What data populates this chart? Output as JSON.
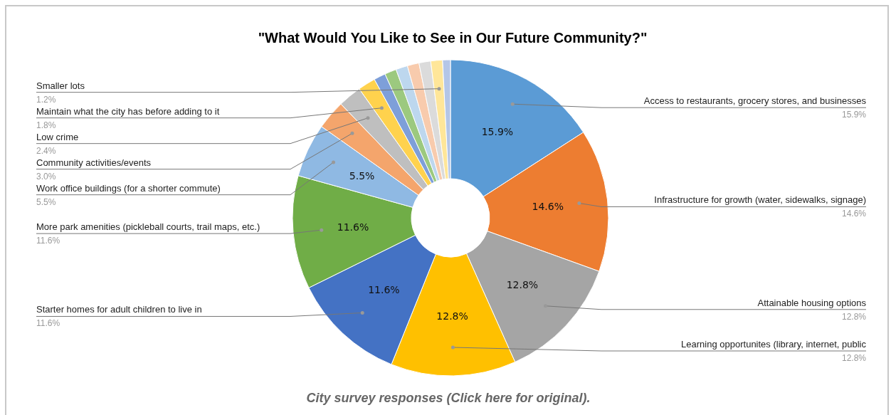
{
  "chart_data": {
    "type": "donut",
    "title": "\"What Would You Like to See in Our Future Community?\"",
    "categories": [
      "Access to restaurants, grocery stores, and businesses",
      "Infrastructure for growth (water, sidewalks, signage)",
      "Attainable housing options",
      "Learning opportunites (library, internet, public",
      "Starter homes for adult children to live in",
      "More park amenities (pickleball courts, trail maps, etc.)",
      "Work office buildings (for a shorter commute)",
      "Community activities/events",
      "Low crime",
      "Maintain what the city has before adding to it",
      null,
      null,
      null,
      null,
      null,
      "Smaller lots",
      null
    ],
    "values": [
      15.9,
      14.6,
      12.8,
      12.8,
      11.6,
      11.6,
      5.5,
      3.0,
      2.4,
      1.8,
      1.2,
      1.2,
      1.2,
      1.2,
      1.2,
      1.2,
      0.8
    ],
    "value_labels": [
      "15.9%",
      "14.6%",
      "12.8%",
      "12.8%",
      "11.6%",
      "11.6%",
      "5.5%",
      "3.0%",
      "2.4%",
      "1.8%",
      null,
      null,
      null,
      null,
      null,
      "1.2%",
      null
    ],
    "colors": [
      "#5b9bd5",
      "#ed7d31",
      "#a5a5a5",
      "#ffc000",
      "#4472c4",
      "#70ad47",
      "#8fb9e3",
      "#f4a56c",
      "#bfbfbf",
      "#ffd24d",
      "#7e9fd9",
      "#9cc97f",
      "#bdd7ee",
      "#f8cbad",
      "#dbdbdb",
      "#ffe699",
      "#b4c6e7"
    ],
    "legend": false,
    "annotations": [
      "City survey responses (Click here for original)."
    ]
  }
}
